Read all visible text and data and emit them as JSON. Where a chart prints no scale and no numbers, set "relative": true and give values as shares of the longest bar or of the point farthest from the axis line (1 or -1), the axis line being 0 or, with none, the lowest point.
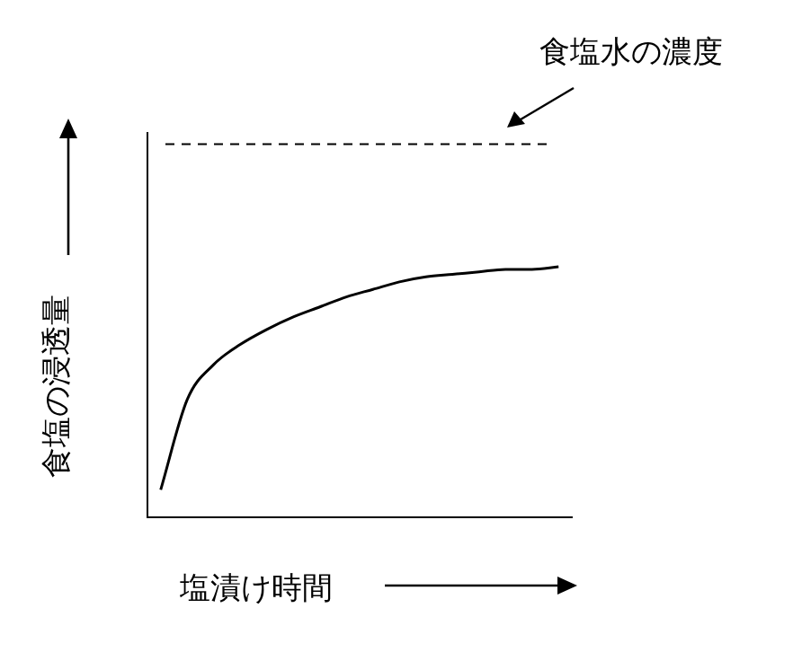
{
  "chart_data": {
    "type": "line",
    "relative": true,
    "xlabel": "塩漬け時間",
    "ylabel": "食塩の浸透量",
    "categories": [
      null,
      null,
      null,
      null,
      null,
      null,
      null,
      null,
      null,
      null,
      null,
      null,
      null,
      null,
      null,
      null
    ],
    "series": [
      {
        "color": "#000000",
        "values": [
          0.11,
          0.47,
          0.61,
          0.69,
          0.75,
          0.8,
          0.84,
          0.88,
          0.91,
          0.94,
          0.96,
          0.97,
          0.98,
          0.99,
          0.99,
          1
        ]
      }
    ],
    "ref_lines": [
      {
        "axis": "y",
        "value": 1.49,
        "label": "食塩水の濃度",
        "color": "#000000",
        "line_style": "dashed"
      }
    ],
    "marker": "none",
    "line_style": "solid",
    "grid": false,
    "legend": false
  }
}
